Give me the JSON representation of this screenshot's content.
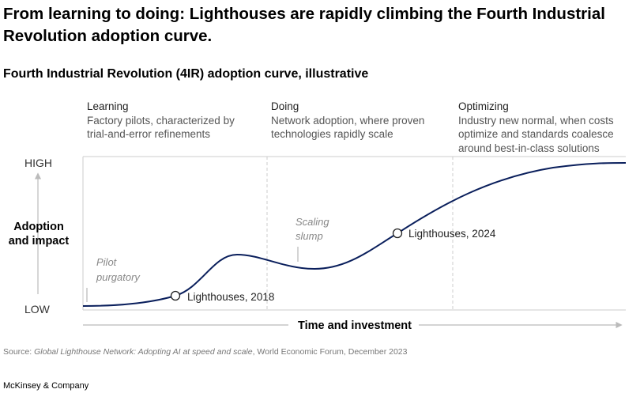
{
  "title": "From learning to doing: Lighthouses are rapidly climbing the Fourth Industrial Revolution adoption curve.",
  "subtitle": "Fourth Industrial Revolution (4IR) adoption curve, illustrative",
  "phases": [
    {
      "name": "Learning",
      "description": "Factory pilots, characterized by\ntrial-and-error refinements"
    },
    {
      "name": "Doing",
      "description": "Network adoption, where proven\ntechnologies rapidly scale"
    },
    {
      "name": "Optimizing",
      "description": "Industry new normal, when costs\noptimize and standards coalesce\naround best-in-class solutions"
    }
  ],
  "axes": {
    "y_label_line1": "Adoption",
    "y_label_line2": "and impact",
    "y_high": "HIGH",
    "y_low": "LOW",
    "x_label": "Time and investment"
  },
  "annotations": {
    "pilot_line1": "Pilot",
    "pilot_line2": "purgatory",
    "scaling_line1": "Scaling",
    "scaling_line2": "slump"
  },
  "milestones": {
    "m2018": "Lighthouses, 2018",
    "m2024": "Lighthouses, 2024"
  },
  "source": {
    "prefix": "Source: ",
    "italic": "Global Lighthouse Network: Adopting AI at speed and scale",
    "suffix": ", World Economic Forum, December 2023"
  },
  "brand": "McKinsey & Company",
  "colors": {
    "curve": "#0a1f5c",
    "grid": "#cccccc",
    "axis": "#bbbbbb",
    "annotation": "#888888"
  }
}
